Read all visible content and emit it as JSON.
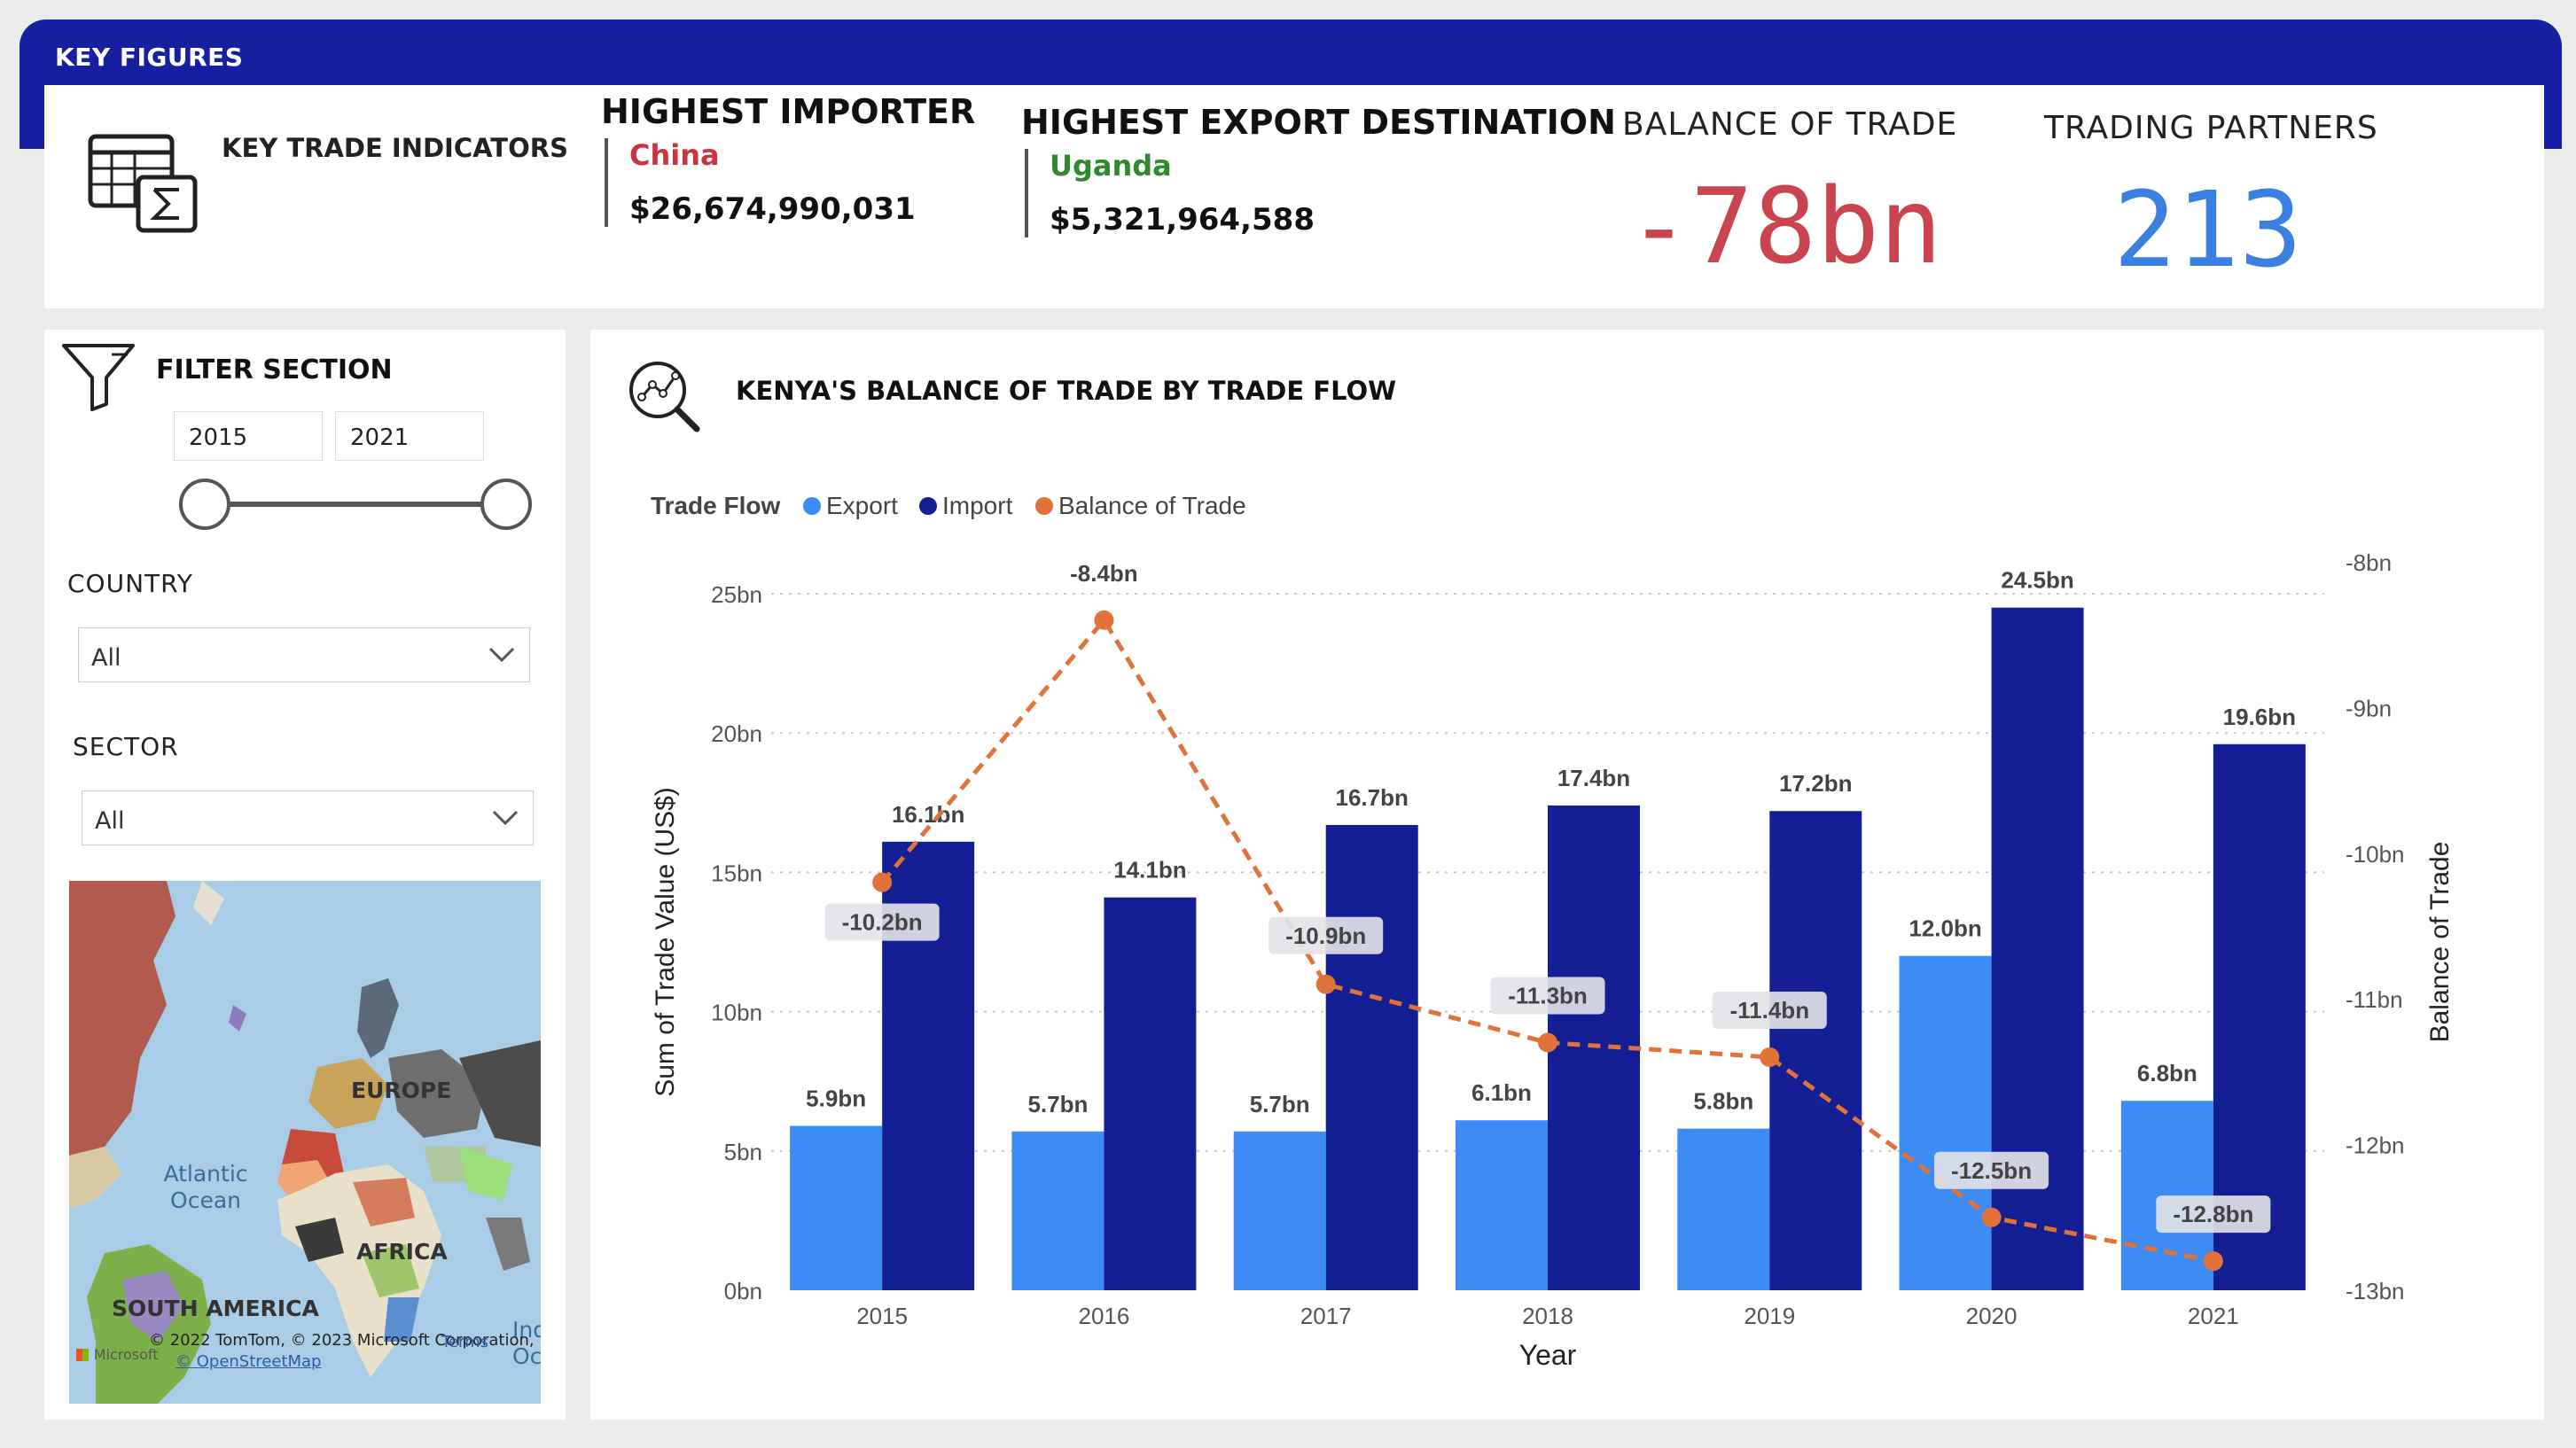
{
  "header": {
    "title": "KEY FIGURES"
  },
  "kpi": {
    "label": "KEY TRADE INDICATORS",
    "importer": {
      "heading": "HIGHEST IMPORTER",
      "country": "China",
      "value": "$26,674,990,031"
    },
    "export_dest": {
      "heading": "HIGHEST EXPORT DESTINATION",
      "country": "Uganda",
      "value": "$5,321,964,588"
    },
    "balance": {
      "heading": "BALANCE OF TRADE",
      "value": "-78bn"
    },
    "partners": {
      "heading": "TRADING PARTNERS",
      "value": "213"
    }
  },
  "filters": {
    "title": "FILTER SECTION",
    "year_from": "2015",
    "year_to": "2021",
    "country_label": "COUNTRY",
    "country_value": "All",
    "sector_label": "SECTOR",
    "sector_value": "All"
  },
  "map": {
    "labels": {
      "europe": "EUROPE",
      "africa": "AFRICA",
      "south_america": "SOUTH AMERICA"
    },
    "ocean": "Atlantic Ocean",
    "ocean_partial": "Ind Oc",
    "credit": "© 2022 TomTom, © 2023 Microsoft Corporation,",
    "credit_osm": "© OpenStreetMap",
    "terms": "Terms",
    "ms": "Microsoft"
  },
  "chart": {
    "title": "KENYA'S BALANCE OF TRADE BY TRADE FLOW",
    "legend_title": "Trade Flow"
  },
  "chart_data": {
    "type": "bar",
    "title": "KENYA'S BALANCE OF TRADE BY TRADE FLOW",
    "xlabel": "Year",
    "ylabel": "Sum of Trade Value (US$)",
    "y2label": "Balance of Trade",
    "categories": [
      "2015",
      "2016",
      "2017",
      "2018",
      "2019",
      "2020",
      "2021"
    ],
    "ylim": [
      0,
      25
    ],
    "y_ticks": [
      "0bn",
      "5bn",
      "10bn",
      "15bn",
      "20bn",
      "25bn"
    ],
    "y2lim": [
      -13,
      -8
    ],
    "y2_ticks": [
      "-13bn",
      "-12bn",
      "-11bn",
      "-10bn",
      "-9bn",
      "-8bn"
    ],
    "legend_position": "top-left",
    "series": [
      {
        "name": "Export",
        "type": "bar",
        "color": "#3d8bf5",
        "values": [
          5.9,
          5.7,
          5.7,
          6.1,
          5.8,
          12.0,
          6.8
        ],
        "labels": [
          "5.9bn",
          "5.7bn",
          "5.7bn",
          "6.1bn",
          "5.8bn",
          "12.0bn",
          "6.8bn"
        ]
      },
      {
        "name": "Import",
        "type": "bar",
        "color": "#141f96",
        "values": [
          16.1,
          14.1,
          16.7,
          17.4,
          17.2,
          24.5,
          19.6
        ],
        "labels": [
          "16.1bn",
          "14.1bn",
          "16.7bn",
          "17.4bn",
          "17.2bn",
          "24.5bn",
          "19.6bn"
        ]
      },
      {
        "name": "Balance of Trade",
        "type": "line",
        "axis": "right",
        "color": "#e0723a",
        "values": [
          -10.2,
          -8.4,
          -10.9,
          -11.3,
          -11.4,
          -12.5,
          -12.8
        ],
        "labels": [
          "-10.2bn",
          "-8.4bn",
          "-10.9bn",
          "-11.3bn",
          "-11.4bn",
          "-12.5bn",
          "-12.8bn"
        ]
      }
    ],
    "grid": true
  },
  "colors": {
    "header": "#1620a0",
    "importer_country": "#c8353f",
    "export_country": "#2f8a2f",
    "balance_value": "#c9444e",
    "partners_value": "#3b7fe0"
  }
}
